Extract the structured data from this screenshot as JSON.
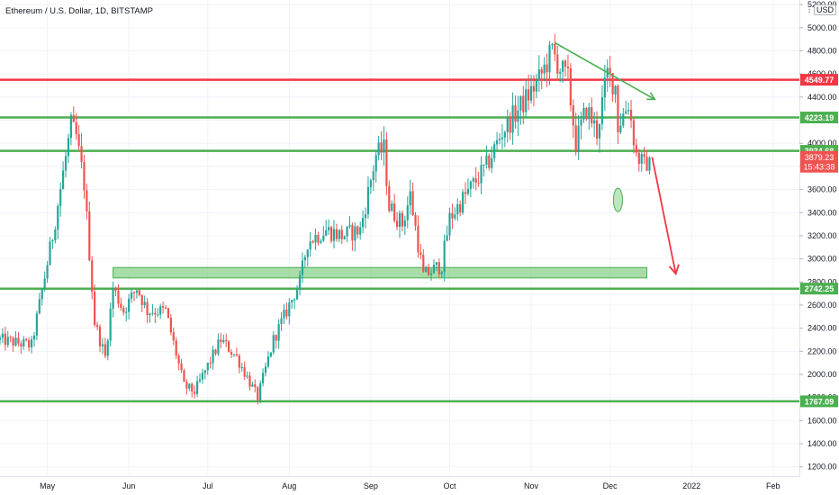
{
  "header": {
    "title": "Ethereum / U.S. Dollar, 1D, BITSTAMP",
    "currency": "USD",
    "scale_mark": "↕"
  },
  "colors": {
    "up": "#26a69a",
    "down": "#ef5350",
    "support": "#4caf50",
    "resistance": "#f23645",
    "zone_fill": "#8bd18c",
    "arrow": "#f23645"
  },
  "chart_data": {
    "type": "candlestick",
    "title": "Ethereum / U.S. Dollar, 1D, BITSTAMP",
    "y_axis": {
      "ticks": [
        1200,
        1400,
        1600,
        1800,
        2000,
        2200,
        2400,
        2600,
        2800,
        3000,
        3200,
        3400,
        3600,
        3800,
        4000,
        4200,
        4400,
        4600,
        4800,
        5000,
        5200
      ],
      "tick_labels": [
        "1200.00",
        "1400.00",
        "1600.00",
        "1800.00",
        "2000.00",
        "2200.00",
        "2400.00",
        "2600.00",
        "2800.00",
        "3000.00",
        "3200.00",
        "3400.00",
        "3600.00",
        "3800.00",
        "4000.00",
        "4200.00",
        "4400.00",
        "4600.00",
        "4800.00",
        "5000.00",
        "5200.00"
      ],
      "range": [
        1120,
        5240
      ],
      "position": "right"
    },
    "x_axis": {
      "labels": [
        "May",
        "Jun",
        "Jul",
        "Aug",
        "Sep",
        "Oct",
        "Nov",
        "Dec",
        "2022",
        "Feb"
      ],
      "label_dates": [
        "2021-05-01",
        "2021-06-01",
        "2021-07-01",
        "2021-08-01",
        "2021-09-01",
        "2021-10-01",
        "2021-11-01",
        "2021-12-01",
        "2022-01-01",
        "2022-02-01"
      ],
      "range": [
        "2021-04-13",
        "2022-02-11"
      ]
    },
    "grid": true,
    "horizontal_levels": [
      {
        "price": 4549.77,
        "label": "4549.77",
        "color": "#f23645"
      },
      {
        "price": 4223.19,
        "label": "4223.19",
        "color": "#4caf50"
      },
      {
        "price": 3934.68,
        "label": "3934.68",
        "color": "#4caf50"
      },
      {
        "price": 2742.25,
        "label": "2742.25",
        "color": "#4caf50"
      },
      {
        "price": 1767.09,
        "label": "1767.09",
        "color": "#4caf50"
      }
    ],
    "last_price": {
      "price": 3879.23,
      "label": "3879.23",
      "countdown": "15:43:38",
      "color": "#ef5350"
    },
    "zone": {
      "from": "2021-05-26",
      "to": "2021-12-15",
      "low": 2835,
      "high": 2925
    },
    "trendline": {
      "from_date": "2021-11-10",
      "from_price": 4870,
      "to_date": "2021-12-18",
      "to_price": 4380
    },
    "projection_arrow": {
      "from_date": "2021-12-17",
      "from_price": 3880,
      "to_date": "2021-12-26",
      "to_price": 2870
    },
    "marked_wick": {
      "date": "2021-12-04",
      "price": 3510
    },
    "anchors": [
      [
        "2021-04-13",
        2300
      ],
      [
        "2021-04-25",
        2250
      ],
      [
        "2021-05-03",
        3200
      ],
      [
        "2021-05-10",
        4150
      ],
      [
        "2021-05-12",
        4050
      ],
      [
        "2021-05-15",
        3650
      ],
      [
        "2021-05-19",
        2450
      ],
      [
        "2021-05-23",
        2150
      ],
      [
        "2021-05-26",
        2750
      ],
      [
        "2021-05-30",
        2550
      ],
      [
        "2021-06-04",
        2750
      ],
      [
        "2021-06-08",
        2550
      ],
      [
        "2021-06-15",
        2550
      ],
      [
        "2021-06-22",
        1900
      ],
      [
        "2021-06-26",
        1850
      ],
      [
        "2021-07-06",
        2300
      ],
      [
        "2021-07-12",
        2150
      ],
      [
        "2021-07-20",
        1800
      ],
      [
        "2021-07-26",
        2300
      ],
      [
        "2021-08-05",
        2800
      ],
      [
        "2021-08-08",
        3150
      ],
      [
        "2021-08-15",
        3250
      ],
      [
        "2021-08-21",
        3200
      ],
      [
        "2021-08-28",
        3250
      ],
      [
        "2021-09-03",
        3900
      ],
      [
        "2021-09-06",
        3950
      ],
      [
        "2021-09-08",
        3450
      ],
      [
        "2021-09-13",
        3300
      ],
      [
        "2021-09-16",
        3550
      ],
      [
        "2021-09-21",
        2850
      ],
      [
        "2021-09-28",
        2950
      ],
      [
        "2021-10-01",
        3350
      ],
      [
        "2021-10-07",
        3550
      ],
      [
        "2021-10-15",
        3800
      ],
      [
        "2021-10-21",
        4100
      ],
      [
        "2021-10-29",
        4350
      ],
      [
        "2021-11-04",
        4550
      ],
      [
        "2021-11-09",
        4800
      ],
      [
        "2021-11-12",
        4650
      ],
      [
        "2021-11-15",
        4550
      ],
      [
        "2021-11-18",
        4000
      ],
      [
        "2021-11-22",
        4300
      ],
      [
        "2021-11-26",
        4100
      ],
      [
        "2021-11-30",
        4600
      ],
      [
        "2021-12-03",
        4500
      ],
      [
        "2021-12-04",
        4150
      ],
      [
        "2021-12-08",
        4350
      ],
      [
        "2021-12-11",
        3900
      ],
      [
        "2021-12-14",
        3800
      ],
      [
        "2021-12-16",
        3879.23
      ]
    ]
  }
}
